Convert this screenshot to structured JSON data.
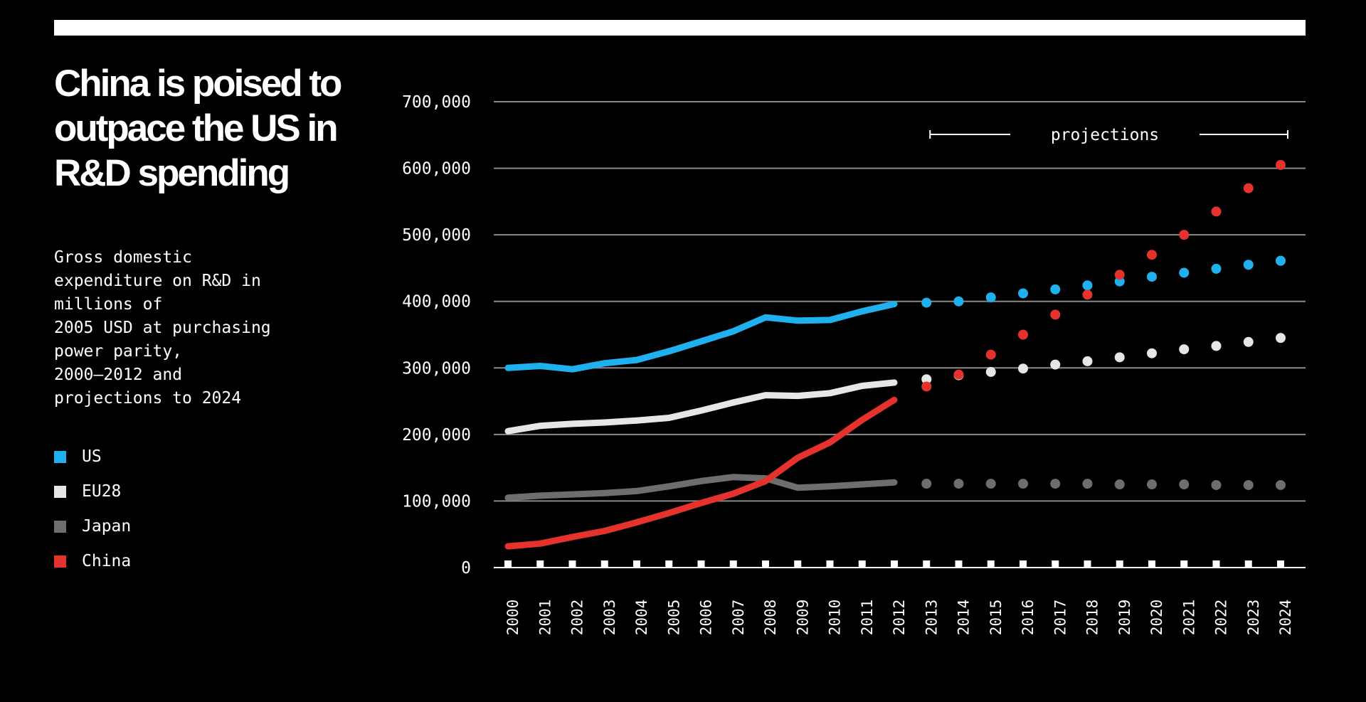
{
  "header": {
    "title": "China is poised to outpace the US in R&D spending",
    "subtitle": "Gross domestic\nexpenditure on R&D in\nmillions of\n2005 USD at purchasing\npower parity,\n2000–2012 and\nprojections to 2024"
  },
  "colors": {
    "background": "#000000",
    "US": "#1fb0ef",
    "EU28": "#e6e6e6",
    "Japan": "#6e6e6e",
    "China": "#e5322d",
    "gridline": "#8a8a8a"
  },
  "legend": [
    {
      "label": "US",
      "color": "#1fb0ef"
    },
    {
      "label": "EU28",
      "color": "#e6e6e6"
    },
    {
      "label": "Japan",
      "color": "#6e6e6e"
    },
    {
      "label": "China",
      "color": "#e5322d"
    }
  ],
  "chart_data": {
    "type": "line",
    "title": "China is poised to outpace the US in R&D spending",
    "subtitle": "Gross domestic expenditure on R&D in millions of 2005 USD at purchasing power parity, 2000–2012 and projections to 2024",
    "xlabel": "",
    "ylabel": "",
    "x": [
      2000,
      2001,
      2002,
      2003,
      2004,
      2005,
      2006,
      2007,
      2008,
      2009,
      2010,
      2011,
      2012,
      2013,
      2014,
      2015,
      2016,
      2017,
      2018,
      2019,
      2020,
      2021,
      2022,
      2023,
      2024
    ],
    "x_tick_labels": [
      "2000",
      "2001",
      "2002",
      "2003",
      "2004",
      "2005",
      "2006",
      "2007",
      "2008",
      "2009",
      "2010",
      "2011",
      "2012",
      "2013",
      "2014",
      "2015",
      "2016",
      "2017",
      "2018",
      "2019",
      "2020",
      "2021",
      "2022",
      "2023",
      "2024"
    ],
    "ylim": [
      0,
      700000
    ],
    "y_ticks": [
      0,
      100000,
      200000,
      300000,
      400000,
      500000,
      600000,
      700000
    ],
    "y_tick_labels": [
      "0",
      "100,000",
      "200,000",
      "300,000",
      "400,000",
      "500,000",
      "600,000",
      "700,000"
    ],
    "grid": true,
    "projection_start_year": 2013,
    "projection_label": "projections",
    "series": [
      {
        "name": "US",
        "color": "#1fb0ef",
        "values": [
          300000,
          303000,
          298000,
          307000,
          312000,
          325000,
          340000,
          355000,
          376000,
          371000,
          372000,
          385000,
          396000,
          398000,
          400000,
          406000,
          412000,
          418000,
          424000,
          430000,
          437000,
          443000,
          449000,
          455000,
          461000
        ]
      },
      {
        "name": "EU28",
        "color": "#e6e6e6",
        "values": [
          205000,
          213000,
          216000,
          218000,
          221000,
          225000,
          236000,
          248000,
          259000,
          258000,
          262000,
          273000,
          278000,
          283000,
          289000,
          294000,
          299000,
          305000,
          310000,
          316000,
          322000,
          328000,
          333000,
          339000,
          345000
        ]
      },
      {
        "name": "Japan",
        "color": "#6e6e6e",
        "values": [
          105000,
          108000,
          110000,
          112000,
          115000,
          122000,
          130000,
          136000,
          134000,
          120000,
          122000,
          125000,
          128000,
          126000,
          126000,
          126000,
          126000,
          126000,
          126000,
          125000,
          125000,
          125000,
          124000,
          124000,
          124000
        ]
      },
      {
        "name": "China",
        "color": "#e5322d",
        "values": [
          32000,
          36000,
          46000,
          55000,
          68000,
          82000,
          97000,
          111000,
          130000,
          165000,
          188000,
          222000,
          252000,
          272000,
          290000,
          320000,
          350000,
          380000,
          410000,
          440000,
          470000,
          500000,
          535000,
          570000,
          605000
        ]
      }
    ]
  }
}
